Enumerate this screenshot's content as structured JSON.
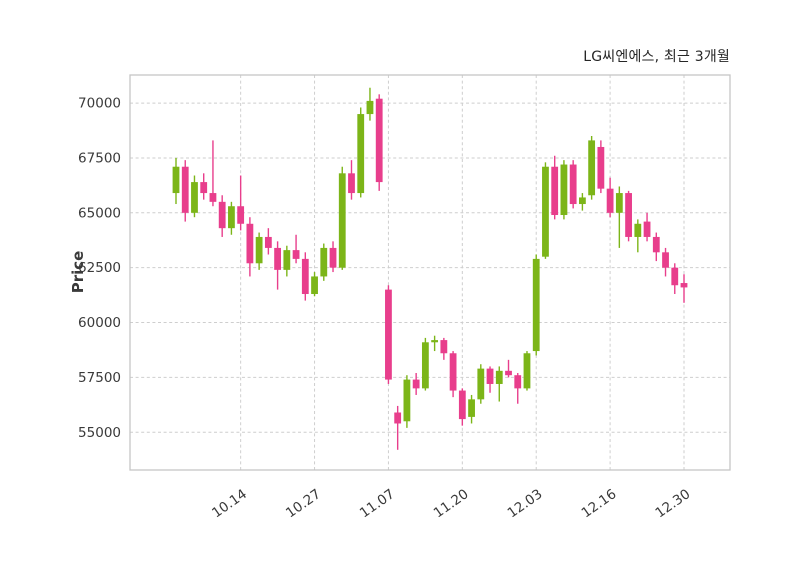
{
  "chart_data": {
    "type": "candlestick",
    "title": "LG씨엔에스, 최근 3개월",
    "ylabel": "Price",
    "ylim": [
      53280,
      71280
    ],
    "yticks": [
      55000,
      57500,
      60000,
      62500,
      65000,
      67500,
      70000
    ],
    "xtick_labels": [
      "10.14",
      "10.27",
      "11.07",
      "11.20",
      "12.03",
      "12.16",
      "12.30"
    ],
    "xtick_indices": [
      7,
      15,
      23,
      31,
      39,
      47,
      55
    ],
    "up_color": "#7CB518",
    "down_color": "#E83E8C",
    "grid": true,
    "legend": "none",
    "candles_format": [
      "open",
      "high",
      "low",
      "close"
    ],
    "candles": [
      [
        65900,
        67500,
        65400,
        67100
      ],
      [
        67100,
        67400,
        64600,
        65000
      ],
      [
        65000,
        66700,
        64800,
        66400
      ],
      [
        66400,
        66800,
        65600,
        65900
      ],
      [
        65900,
        68300,
        65300,
        65500
      ],
      [
        65500,
        65800,
        63900,
        64300
      ],
      [
        64300,
        65500,
        64000,
        65300
      ],
      [
        65300,
        66700,
        64200,
        64500
      ],
      [
        64500,
        64800,
        62100,
        62700
      ],
      [
        62700,
        64100,
        62400,
        63900
      ],
      [
        63900,
        64300,
        63100,
        63400
      ],
      [
        63400,
        63700,
        61500,
        62400
      ],
      [
        62400,
        63500,
        62100,
        63300
      ],
      [
        63300,
        64000,
        62700,
        62900
      ],
      [
        62900,
        63200,
        61000,
        61300
      ],
      [
        61300,
        62300,
        61200,
        62100
      ],
      [
        62100,
        63600,
        61900,
        63400
      ],
      [
        63400,
        63700,
        62300,
        62500
      ],
      [
        62500,
        67100,
        62400,
        66800
      ],
      [
        66800,
        67400,
        65600,
        65900
      ],
      [
        65900,
        69800,
        65700,
        69500
      ],
      [
        69500,
        70700,
        69200,
        70100
      ],
      [
        70200,
        70400,
        66000,
        66400
      ],
      [
        61500,
        61700,
        57200,
        57400
      ],
      [
        55900,
        56200,
        54200,
        55400
      ],
      [
        55500,
        57600,
        55200,
        57400
      ],
      [
        57400,
        57700,
        56700,
        57000
      ],
      [
        57000,
        59300,
        56900,
        59100
      ],
      [
        59100,
        59400,
        58700,
        59200
      ],
      [
        59200,
        59300,
        58300,
        58600
      ],
      [
        58600,
        58700,
        56600,
        56900
      ],
      [
        56900,
        57000,
        55300,
        55600
      ],
      [
        55700,
        56700,
        55400,
        56500
      ],
      [
        56500,
        58100,
        56300,
        57900
      ],
      [
        57900,
        58000,
        56800,
        57200
      ],
      [
        57200,
        58000,
        56400,
        57800
      ],
      [
        57800,
        58300,
        57500,
        57600
      ],
      [
        57600,
        57700,
        56300,
        57000
      ],
      [
        57000,
        58700,
        56900,
        58600
      ],
      [
        58700,
        63100,
        58500,
        62900
      ],
      [
        63000,
        67300,
        62900,
        67100
      ],
      [
        67100,
        67600,
        64700,
        64900
      ],
      [
        64900,
        67400,
        64700,
        67200
      ],
      [
        67200,
        67400,
        65200,
        65400
      ],
      [
        65400,
        65900,
        65100,
        65700
      ],
      [
        65800,
        68500,
        65600,
        68300
      ],
      [
        68000,
        68300,
        65900,
        66100
      ],
      [
        66100,
        66600,
        64800,
        65000
      ],
      [
        65000,
        66200,
        63400,
        65900
      ],
      [
        65900,
        66000,
        63700,
        63900
      ],
      [
        63900,
        64700,
        63200,
        64500
      ],
      [
        64600,
        65000,
        63700,
        63900
      ],
      [
        63900,
        64100,
        62800,
        63200
      ],
      [
        63200,
        63400,
        62100,
        62500
      ],
      [
        62500,
        62700,
        61300,
        61700
      ],
      [
        61800,
        62200,
        60900,
        61600
      ]
    ]
  }
}
